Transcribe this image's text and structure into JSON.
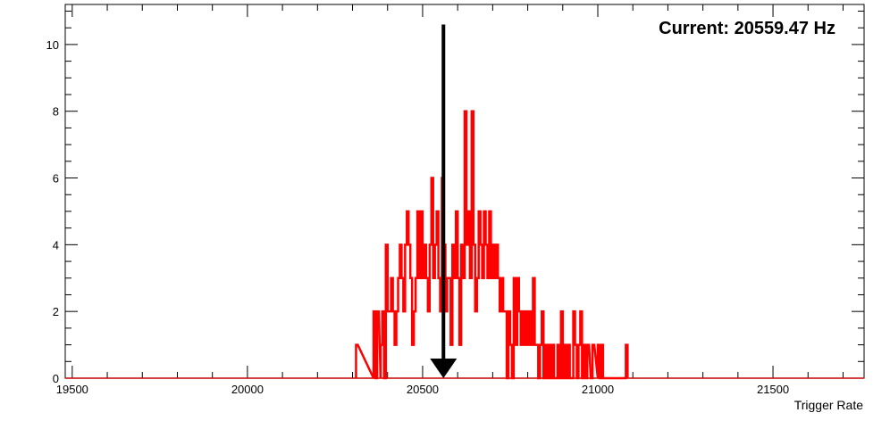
{
  "chart_data": {
    "type": "histogram",
    "xlabel": "Trigger Rate",
    "ylabel": "",
    "xlim": [
      19480,
      21760
    ],
    "ylim": [
      0,
      11.2
    ],
    "x_ticks": [
      19500,
      20000,
      20500,
      21000,
      21500
    ],
    "y_ticks": [
      0,
      2,
      4,
      6,
      8,
      10
    ],
    "bin_width": 5,
    "series_color": "#ff0000",
    "arrow_color": "#000000",
    "annotation": "Current: 20559.47 Hz",
    "marker": {
      "x": 20559.47,
      "y_top": 10.6,
      "y_bottom": 0
    },
    "bins": [
      [
        20310,
        1
      ],
      [
        20360,
        2
      ],
      [
        20365,
        0
      ],
      [
        20370,
        2
      ],
      [
        20380,
        1
      ],
      [
        20385,
        2
      ],
      [
        20390,
        0
      ],
      [
        20395,
        4
      ],
      [
        20400,
        2
      ],
      [
        20405,
        2
      ],
      [
        20410,
        3
      ],
      [
        20415,
        2
      ],
      [
        20420,
        1
      ],
      [
        20425,
        2
      ],
      [
        20430,
        3
      ],
      [
        20435,
        4
      ],
      [
        20440,
        3
      ],
      [
        20445,
        2
      ],
      [
        20450,
        4
      ],
      [
        20455,
        5
      ],
      [
        20460,
        4
      ],
      [
        20465,
        3
      ],
      [
        20470,
        1
      ],
      [
        20475,
        2
      ],
      [
        20480,
        3
      ],
      [
        20485,
        5
      ],
      [
        20490,
        3
      ],
      [
        20495,
        5
      ],
      [
        20500,
        3
      ],
      [
        20505,
        4
      ],
      [
        20510,
        3
      ],
      [
        20515,
        2
      ],
      [
        20520,
        4
      ],
      [
        20525,
        6
      ],
      [
        20530,
        3
      ],
      [
        20535,
        4
      ],
      [
        20540,
        5
      ],
      [
        20545,
        3
      ],
      [
        20550,
        2
      ],
      [
        20555,
        6
      ],
      [
        20560,
        4
      ],
      [
        20565,
        2
      ],
      [
        20570,
        3
      ],
      [
        20575,
        3
      ],
      [
        20580,
        1
      ],
      [
        20585,
        4
      ],
      [
        20590,
        3
      ],
      [
        20595,
        5
      ],
      [
        20600,
        3
      ],
      [
        20605,
        1
      ],
      [
        20610,
        4
      ],
      [
        20615,
        3
      ],
      [
        20620,
        8
      ],
      [
        20625,
        4
      ],
      [
        20630,
        5
      ],
      [
        20635,
        3
      ],
      [
        20640,
        8
      ],
      [
        20645,
        4
      ],
      [
        20650,
        2
      ],
      [
        20655,
        3
      ],
      [
        20660,
        5
      ],
      [
        20665,
        4
      ],
      [
        20670,
        3
      ],
      [
        20675,
        5
      ],
      [
        20680,
        4
      ],
      [
        20685,
        3
      ],
      [
        20690,
        5
      ],
      [
        20695,
        3
      ],
      [
        20700,
        4
      ],
      [
        20705,
        3
      ],
      [
        20710,
        4
      ],
      [
        20715,
        3
      ],
      [
        20720,
        2
      ],
      [
        20725,
        3
      ],
      [
        20730,
        2
      ],
      [
        20735,
        2
      ],
      [
        20740,
        0
      ],
      [
        20745,
        2
      ],
      [
        20750,
        1
      ],
      [
        20755,
        0
      ],
      [
        20760,
        3
      ],
      [
        20765,
        1
      ],
      [
        20770,
        3
      ],
      [
        20775,
        2
      ],
      [
        20780,
        1
      ],
      [
        20785,
        2
      ],
      [
        20790,
        1
      ],
      [
        20795,
        2
      ],
      [
        20800,
        1
      ],
      [
        20805,
        2
      ],
      [
        20810,
        1
      ],
      [
        20815,
        3
      ],
      [
        20820,
        1
      ],
      [
        20825,
        1
      ],
      [
        20830,
        0
      ],
      [
        20835,
        1
      ],
      [
        20840,
        2
      ],
      [
        20845,
        0
      ],
      [
        20850,
        1
      ],
      [
        20855,
        0
      ],
      [
        20860,
        1
      ],
      [
        20865,
        0
      ],
      [
        20870,
        1
      ],
      [
        20875,
        0
      ],
      [
        20880,
        0
      ],
      [
        20885,
        1
      ],
      [
        20890,
        0
      ],
      [
        20895,
        2
      ],
      [
        20900,
        0
      ],
      [
        20905,
        1
      ],
      [
        20910,
        0
      ],
      [
        20915,
        1
      ],
      [
        20920,
        0
      ],
      [
        20930,
        2
      ],
      [
        20935,
        1
      ],
      [
        20940,
        0
      ],
      [
        20945,
        1
      ],
      [
        20950,
        2
      ],
      [
        20955,
        0
      ],
      [
        20960,
        1
      ],
      [
        20965,
        0
      ],
      [
        20970,
        1
      ],
      [
        20980,
        0
      ],
      [
        20985,
        1
      ],
      [
        21000,
        1
      ],
      [
        21005,
        0
      ],
      [
        21010,
        1
      ],
      [
        21015,
        0
      ],
      [
        21020,
        0
      ],
      [
        21080,
        1
      ]
    ]
  }
}
